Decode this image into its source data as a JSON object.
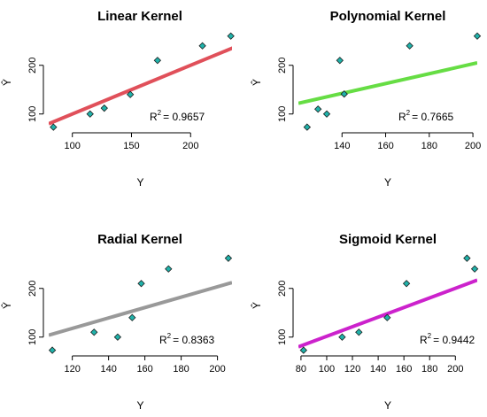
{
  "chart_data": [
    {
      "type": "scatter",
      "title": "Linear Kernel",
      "xlabel": "Y",
      "ylabel": "Ŷ",
      "xlim": [
        80,
        235
      ],
      "ylim": [
        65,
        265
      ],
      "x_ticks": [
        100,
        150,
        200
      ],
      "y_ticks": [
        100,
        200
      ],
      "points": [
        [
          84,
          73
        ],
        [
          115,
          100
        ],
        [
          127,
          112
        ],
        [
          149,
          140
        ],
        [
          172,
          210
        ],
        [
          210,
          240
        ],
        [
          234,
          260
        ]
      ],
      "fit_line": {
        "x": [
          80,
          240
        ],
        "y": [
          80,
          240
        ],
        "color": "#e0505a"
      },
      "r2_text": "= 0.9657",
      "point_color": "#20b2aa"
    },
    {
      "type": "scatter",
      "title": "Polynomial Kernel",
      "xlabel": "Y",
      "ylabel": "Ŷ",
      "xlim": [
        120,
        202
      ],
      "ylim": [
        65,
        265
      ],
      "x_ticks": [
        140,
        160,
        180,
        200
      ],
      "y_ticks": [
        100,
        200
      ],
      "points": [
        [
          124,
          73
        ],
        [
          129,
          110
        ],
        [
          133,
          100
        ],
        [
          139,
          210
        ],
        [
          141,
          141
        ],
        [
          171,
          240
        ],
        [
          202,
          260
        ]
      ],
      "fit_line": {
        "x": [
          120,
          202
        ],
        "y": [
          122,
          205
        ],
        "color": "#66dd44"
      },
      "r2_text": "= 0.7665",
      "point_color": "#20b2aa"
    },
    {
      "type": "scatter",
      "title": "Radial Kernel",
      "xlabel": "Y",
      "ylabel": "Ŷ",
      "xlim": [
        107,
        208
      ],
      "ylim": [
        65,
        265
      ],
      "x_ticks": [
        120,
        140,
        160,
        180,
        200
      ],
      "y_ticks": [
        100,
        200
      ],
      "points": [
        [
          109,
          73
        ],
        [
          132,
          110
        ],
        [
          145,
          100
        ],
        [
          153,
          140
        ],
        [
          158,
          210
        ],
        [
          173,
          240
        ],
        [
          206,
          262
        ]
      ],
      "fit_line": {
        "x": [
          107,
          208
        ],
        "y": [
          104,
          212
        ],
        "color": "#999999"
      },
      "r2_text": "= 0.8363",
      "point_color": "#20b2aa"
    },
    {
      "type": "scatter",
      "title": "Sigmoid Kernel",
      "xlabel": "Y",
      "ylabel": "Ŷ",
      "xlim": [
        78,
        217
      ],
      "ylim": [
        65,
        265
      ],
      "x_ticks": [
        80,
        100,
        120,
        140,
        160,
        180,
        200
      ],
      "y_ticks": [
        100,
        200
      ],
      "points": [
        [
          82,
          73
        ],
        [
          112,
          100
        ],
        [
          125,
          110
        ],
        [
          147,
          140
        ],
        [
          162,
          210
        ],
        [
          209,
          262
        ],
        [
          215,
          240
        ]
      ],
      "fit_line": {
        "x": [
          78,
          217
        ],
        "y": [
          80,
          217
        ],
        "color": "#cc22cc"
      },
      "r2_text": "= 0.9442",
      "point_color": "#20b2aa"
    }
  ],
  "labels": {
    "r2_base": "R",
    "r2_sup": "2"
  }
}
